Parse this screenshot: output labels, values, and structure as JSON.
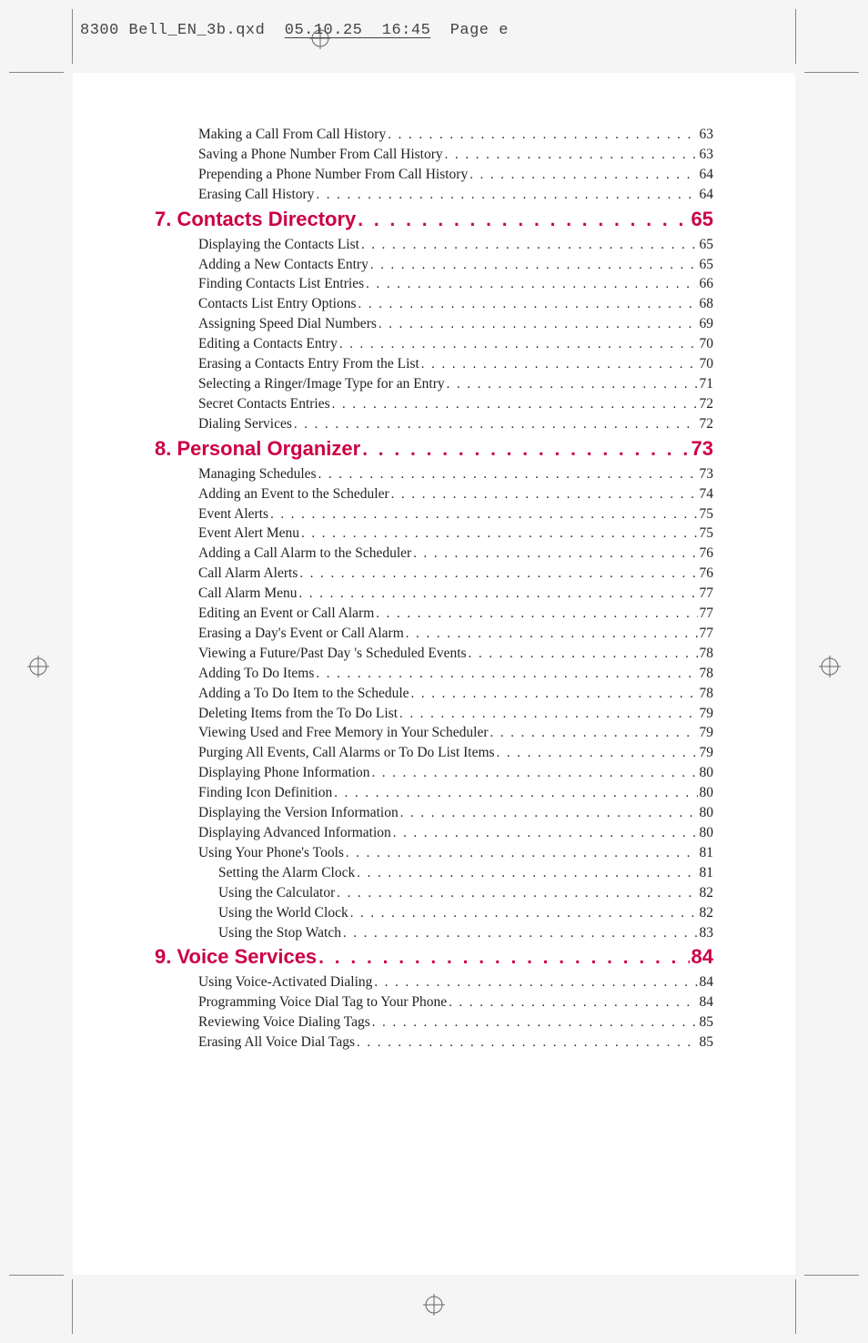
{
  "header": {
    "filename": "8300 Bell_EN_3b.qxd",
    "date": "05.10.25",
    "time": "16:45",
    "pagelabel": "Page e"
  },
  "toc": [
    {
      "type": "item",
      "indent": 1,
      "label": "Making a Call From Call History",
      "page": "63"
    },
    {
      "type": "item",
      "indent": 1,
      "label": "Saving a Phone Number From Call History",
      "page": "63"
    },
    {
      "type": "item",
      "indent": 1,
      "label": "Prepending a Phone Number From Call History",
      "page": "64"
    },
    {
      "type": "item",
      "indent": 1,
      "label": "Erasing Call History",
      "page": "64"
    },
    {
      "type": "heading",
      "label": "7. Contacts Directory",
      "page": "65"
    },
    {
      "type": "item",
      "indent": 1,
      "label": "Displaying the Contacts List",
      "page": "65"
    },
    {
      "type": "item",
      "indent": 1,
      "label": "Adding a New Contacts Entry",
      "page": "65"
    },
    {
      "type": "item",
      "indent": 1,
      "label": "Finding Contacts List Entries",
      "page": "66"
    },
    {
      "type": "item",
      "indent": 1,
      "label": "Contacts List Entry Options",
      "page": "68"
    },
    {
      "type": "item",
      "indent": 1,
      "label": "Assigning Speed Dial Numbers",
      "page": "69"
    },
    {
      "type": "item",
      "indent": 1,
      "label": "Editing a Contacts Entry",
      "page": "70"
    },
    {
      "type": "item",
      "indent": 1,
      "label": "Erasing a Contacts Entry From the List",
      "page": "70"
    },
    {
      "type": "item",
      "indent": 1,
      "label": "Selecting a Ringer/Image Type for an Entry",
      "page": "71"
    },
    {
      "type": "item",
      "indent": 1,
      "label": "Secret Contacts Entries",
      "page": "72"
    },
    {
      "type": "item",
      "indent": 1,
      "label": "Dialing Services",
      "page": "72"
    },
    {
      "type": "heading",
      "label": "8. Personal Organizer",
      "page": "73"
    },
    {
      "type": "item",
      "indent": 1,
      "label": "Managing Schedules",
      "page": "73"
    },
    {
      "type": "item",
      "indent": 1,
      "label": "Adding an Event to the Scheduler",
      "page": "74"
    },
    {
      "type": "item",
      "indent": 1,
      "label": "Event Alerts",
      "page": "75"
    },
    {
      "type": "item",
      "indent": 1,
      "label": "Event Alert Menu",
      "page": "75"
    },
    {
      "type": "item",
      "indent": 1,
      "label": "Adding a Call Alarm to the Scheduler",
      "page": "76"
    },
    {
      "type": "item",
      "indent": 1,
      "label": "Call Alarm Alerts",
      "page": "76"
    },
    {
      "type": "item",
      "indent": 1,
      "label": "Call Alarm Menu",
      "page": "77"
    },
    {
      "type": "item",
      "indent": 1,
      "label": "Editing an Event or Call Alarm",
      "page": "77"
    },
    {
      "type": "item",
      "indent": 1,
      "label": "Erasing a Day's Event or Call Alarm",
      "page": "77"
    },
    {
      "type": "item",
      "indent": 1,
      "label": "Viewing a Future/Past Day 's Scheduled Events",
      "page": "78"
    },
    {
      "type": "item",
      "indent": 1,
      "label": "Adding To Do Items",
      "page": "78"
    },
    {
      "type": "item",
      "indent": 1,
      "label": "Adding a To Do Item to the Schedule",
      "page": "78"
    },
    {
      "type": "item",
      "indent": 1,
      "label": "Deleting Items from the To Do List",
      "page": "79"
    },
    {
      "type": "item",
      "indent": 1,
      "label": "Viewing Used and Free Memory in Your Scheduler",
      "page": "79"
    },
    {
      "type": "item",
      "indent": 1,
      "label": "Purging All Events, Call Alarms or To Do List Items",
      "page": "79"
    },
    {
      "type": "item",
      "indent": 1,
      "label": "Displaying Phone Information",
      "page": "80"
    },
    {
      "type": "item",
      "indent": 1,
      "label": "Finding Icon Definition",
      "page": "80"
    },
    {
      "type": "item",
      "indent": 1,
      "label": "Displaying the Version Information",
      "page": "80"
    },
    {
      "type": "item",
      "indent": 1,
      "label": "Displaying Advanced Information",
      "page": "80"
    },
    {
      "type": "item",
      "indent": 1,
      "label": "Using Your Phone's Tools",
      "page": "81"
    },
    {
      "type": "item",
      "indent": 2,
      "label": "Setting the Alarm Clock",
      "page": "81"
    },
    {
      "type": "item",
      "indent": 2,
      "label": "Using the Calculator",
      "page": "82"
    },
    {
      "type": "item",
      "indent": 2,
      "label": "Using the World Clock",
      "page": "82"
    },
    {
      "type": "item",
      "indent": 2,
      "label": "Using the Stop Watch",
      "page": "83"
    },
    {
      "type": "heading",
      "label": "9. Voice Services",
      "page": "84"
    },
    {
      "type": "item",
      "indent": 1,
      "label": "Using Voice-Activated Dialing",
      "page": "84"
    },
    {
      "type": "item",
      "indent": 1,
      "label": "Programming Voice Dial Tag to Your Phone",
      "page": "84"
    },
    {
      "type": "item",
      "indent": 1,
      "label": "Reviewing Voice Dialing Tags",
      "page": "85"
    },
    {
      "type": "item",
      "indent": 1,
      "label": "Erasing All Voice Dial Tags",
      "page": "85"
    }
  ]
}
